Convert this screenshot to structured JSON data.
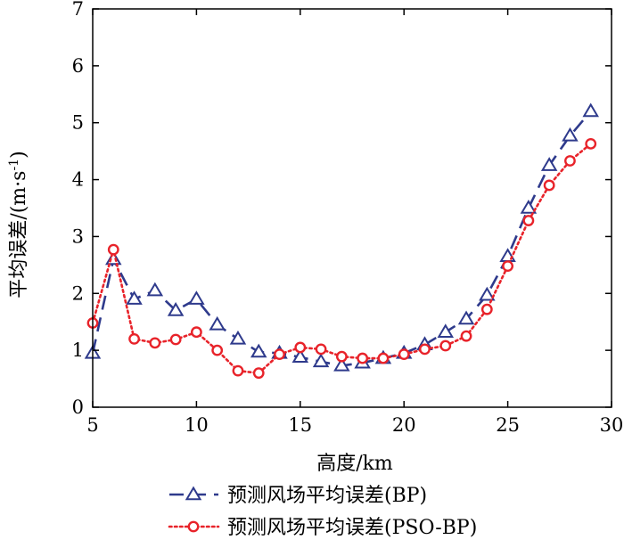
{
  "chart_data": {
    "type": "line",
    "title": "",
    "xlabel": "高度/km",
    "ylabel": "平均误差/(m·s⁻¹)",
    "ylabel_parts": {
      "main": "平均误差/(m·s",
      "sup": "-1",
      "close": ")"
    },
    "xlim": [
      5,
      30
    ],
    "ylim": [
      0,
      7
    ],
    "xticks": [
      5,
      10,
      15,
      20,
      25,
      30
    ],
    "yticks": [
      0,
      1,
      2,
      3,
      4,
      5,
      6,
      7
    ],
    "grid": false,
    "legend_position": "bottom",
    "x": [
      5,
      6,
      7,
      8,
      9,
      10,
      11,
      12,
      13,
      14,
      15,
      16,
      17,
      18,
      19,
      20,
      21,
      22,
      23,
      24,
      25,
      26,
      27,
      28,
      29
    ],
    "series": [
      {
        "name": "预测风场平均误差(BP)",
        "color": "#2e3a8c",
        "dash": "dashed",
        "marker": "triangle",
        "values": [
          0.95,
          2.6,
          1.9,
          2.05,
          1.7,
          1.9,
          1.45,
          1.2,
          0.97,
          0.95,
          0.88,
          0.8,
          0.73,
          0.78,
          0.86,
          0.95,
          1.1,
          1.32,
          1.55,
          1.97,
          2.65,
          3.5,
          4.25,
          4.77,
          5.2
        ]
      },
      {
        "name": "预测风场平均误差(PSO-BP)",
        "color": "#e8232a",
        "dash": "dotted",
        "marker": "circle",
        "values": [
          1.48,
          2.77,
          1.2,
          1.13,
          1.19,
          1.32,
          1.0,
          0.64,
          0.6,
          0.93,
          1.05,
          1.02,
          0.89,
          0.86,
          0.86,
          0.93,
          1.02,
          1.08,
          1.25,
          1.72,
          2.48,
          3.28,
          3.9,
          4.33,
          4.63
        ]
      }
    ]
  }
}
